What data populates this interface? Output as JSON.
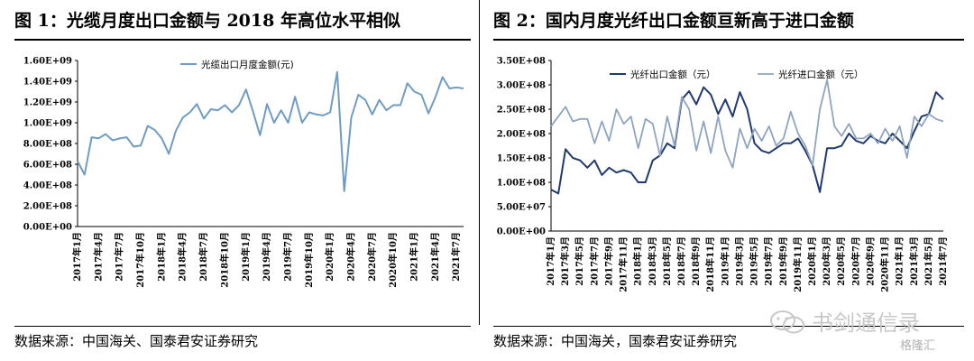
{
  "left": {
    "title": "图 1：光缆月度出口金额与 2018 年高位水平相似",
    "source": "数据来源：中国海关、国泰君安证券研究"
  },
  "right": {
    "title": "图 2：国内月度光纤出口金额亘新高于进口金额",
    "source": "数据来源：中国海关，国泰君安证券研究"
  },
  "watermark": {
    "text": "书剑通信录",
    "icon": "wechat-icon"
  },
  "badge": {
    "text": "格隆汇"
  },
  "colors": {
    "dark_line": "#1f3a6e",
    "light_line": "#8fa4c3",
    "cable_line": "#6f9cc5",
    "grid": "#d9d9d9"
  },
  "chart_data": [
    {
      "type": "line",
      "ylim": [
        0,
        1600000000
      ],
      "y_ticks": [
        "0.00E+00",
        "2.00E+08",
        "4.00E+08",
        "6.00E+08",
        "8.00E+08",
        "1.00E+09",
        "1.20E+09",
        "1.40E+09",
        "1.60E+09"
      ],
      "x_tick_labels": [
        "2017年1月",
        "2017年4月",
        "2017年7月",
        "2017年10月",
        "2018年1月",
        "2018年4月",
        "2018年7月",
        "2018年10月",
        "2019年1月",
        "2019年4月",
        "2019年7月",
        "2019年10月",
        "2020年1月",
        "2020年4月",
        "2020年7月",
        "2020年10月",
        "2021年1月",
        "2021年4月",
        "2021年7月"
      ],
      "legend_position": "top-center",
      "series": [
        {
          "name": "光缆出口月度金额(元)",
          "values": [
            0.63,
            0.5,
            0.86,
            0.85,
            0.89,
            0.83,
            0.85,
            0.86,
            0.77,
            0.78,
            0.97,
            0.93,
            0.85,
            0.7,
            0.92,
            1.05,
            1.1,
            1.18,
            1.04,
            1.13,
            1.12,
            1.17,
            1.1,
            1.17,
            1.32,
            1.11,
            0.88,
            1.18,
            1.0,
            1.12,
            1.0,
            1.25,
            1.0,
            1.1,
            1.08,
            1.07,
            1.1,
            1.49,
            0.34,
            1.05,
            1.27,
            1.22,
            1.08,
            1.22,
            1.12,
            1.17,
            1.17,
            1.38,
            1.3,
            1.27,
            1.09,
            1.25,
            1.44,
            1.33,
            1.34,
            1.33
          ]
        }
      ]
    },
    {
      "type": "line",
      "ylim": [
        0,
        350000000
      ],
      "y_ticks": [
        "0.00E+00",
        "5.00E+07",
        "1.00E+08",
        "1.50E+08",
        "2.00E+08",
        "2.50E+08",
        "3.00E+08",
        "3.50E+08"
      ],
      "x_tick_labels": [
        "2017年1月",
        "2017年3月",
        "2017年5月",
        "2017年7月",
        "2017年9月",
        "2017年11月",
        "2018年1月",
        "2018年3月",
        "2018年5月",
        "2018年7月",
        "2018年9月",
        "2018年11月",
        "2019年1月",
        "2019年3月",
        "2019年5月",
        "2019年7月",
        "2019年9月",
        "2019年11月",
        "2020年1月",
        "2020年3月",
        "2020年5月",
        "2020年7月",
        "2020年9月",
        "2020年11月",
        "2021年1月",
        "2021年3月",
        "2021年5月",
        "2021年7月"
      ],
      "legend_position": "top",
      "series": [
        {
          "name": "光纤出口金额（元）",
          "values": [
            0.85,
            0.77,
            1.68,
            1.5,
            1.45,
            1.3,
            1.45,
            1.15,
            1.3,
            1.2,
            1.25,
            1.2,
            1.0,
            1.0,
            1.45,
            1.55,
            1.8,
            1.7,
            2.7,
            2.87,
            2.6,
            2.95,
            2.8,
            2.4,
            2.7,
            2.35,
            2.85,
            2.5,
            1.8,
            1.65,
            1.6,
            1.7,
            1.8,
            1.8,
            1.9,
            1.65,
            1.35,
            0.8,
            1.7,
            1.7,
            1.75,
            2.0,
            1.85,
            1.8,
            1.95,
            1.85,
            1.8,
            2.0,
            1.85,
            1.7,
            2.05,
            2.35,
            2.4,
            2.85,
            2.7
          ]
        },
        {
          "name": "光纤进口金额（元）",
          "values": [
            2.15,
            2.35,
            2.55,
            2.25,
            2.3,
            2.3,
            1.8,
            2.25,
            1.85,
            2.5,
            2.2,
            2.35,
            1.7,
            2.3,
            2.2,
            1.55,
            2.35,
            1.75,
            2.75,
            2.5,
            1.65,
            2.25,
            1.6,
            2.35,
            1.65,
            1.3,
            2.1,
            1.7,
            2.1,
            1.85,
            2.15,
            1.75,
            1.9,
            2.45,
            2.0,
            1.75,
            1.35,
            2.5,
            3.1,
            2.15,
            1.95,
            2.2,
            1.9,
            1.9,
            2.0,
            1.8,
            2.1,
            1.85,
            2.15,
            1.5,
            2.35,
            2.15,
            2.4,
            2.3,
            2.25
          ]
        }
      ]
    }
  ]
}
